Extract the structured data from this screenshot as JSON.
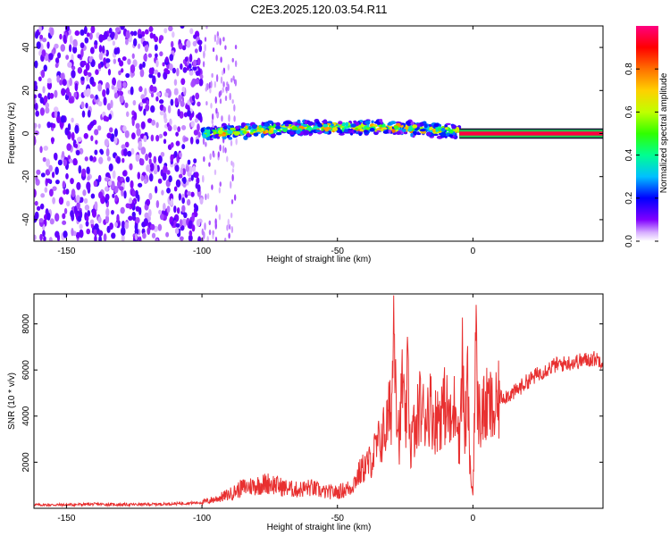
{
  "title": "C2E3.2025.120.03.54.R11",
  "chart_data": [
    {
      "type": "heatmap",
      "panel": "top",
      "xlabel": "Height of straight line (km)",
      "ylabel": "Frequency (Hz)",
      "xlim": [
        -162,
        48
      ],
      "ylim": [
        -50,
        50
      ],
      "x_ticks": [
        -150,
        -100,
        -50,
        0
      ],
      "y_ticks": [
        -40,
        -20,
        0,
        20,
        40
      ],
      "colorbar": {
        "label": "Normalized spectral amplitude",
        "range": [
          0,
          1
        ],
        "ticks": [
          0.0,
          0.2,
          0.4,
          0.6,
          0.8
        ],
        "colormap": [
          "#ffffff",
          "#c080ff",
          "#6000ff",
          "#0000ff",
          "#00c0ff",
          "#00ff80",
          "#40ff00",
          "#ffff00",
          "#ff8000",
          "#ff0000",
          "#ff00a0"
        ]
      },
      "regions": [
        {
          "x": [
            -162,
            -100
          ],
          "freq": [
            -50,
            50
          ],
          "amplitude": 0.1,
          "pattern": "broadband noise"
        },
        {
          "x": [
            -100,
            -87
          ],
          "freq": [
            -50,
            50
          ],
          "amplitude": 0.05,
          "pattern": "sparse noise"
        },
        {
          "x": [
            -100,
            -5
          ],
          "freq_center": [
            0,
            3
          ],
          "freq_width": 6,
          "amplitude": 0.4,
          "pattern": "signal band"
        },
        {
          "x": [
            -5,
            48
          ],
          "freq_center": 0,
          "freq_width": 2,
          "amplitude": 0.95,
          "pattern": "narrow carrier"
        }
      ]
    },
    {
      "type": "line",
      "panel": "bottom",
      "xlabel": "Height of straight line (km)",
      "ylabel": "SNR (10 * v/v)",
      "xlim": [
        -162,
        48
      ],
      "ylim": [
        0,
        9300
      ],
      "x_ticks": [
        -150,
        -100,
        -50,
        0
      ],
      "y_ticks": [
        2000,
        4000,
        6000,
        8000
      ],
      "color": "#e83030",
      "series": [
        {
          "x": [
            -162,
            -150,
            -140,
            -130,
            -120,
            -110,
            -100,
            -95,
            -90,
            -85,
            -80,
            -75,
            -70,
            -65,
            -60,
            -55,
            -50,
            -45,
            -42,
            -40,
            -38,
            -36,
            -34,
            -32,
            -30,
            -29,
            -28,
            -27,
            -26,
            -25,
            -24,
            -23,
            -22,
            -21,
            -20,
            -18,
            -16,
            -14,
            -12,
            -10,
            -8,
            -6,
            -5,
            -4,
            -3,
            -2,
            -1,
            0,
            1,
            2,
            4,
            6,
            8,
            10,
            15,
            20,
            25,
            30,
            35,
            40,
            45,
            48
          ],
          "y": [
            150,
            150,
            180,
            160,
            170,
            200,
            250,
            400,
            600,
            900,
            1000,
            1100,
            900,
            800,
            900,
            700,
            700,
            900,
            1500,
            1800,
            2000,
            2500,
            3000,
            3500,
            4500,
            9300,
            4000,
            3000,
            6000,
            3000,
            5800,
            2500,
            3500,
            3000,
            4500,
            4000,
            4500,
            3800,
            4200,
            4500,
            3500,
            5000,
            2500,
            7000,
            3000,
            5500,
            1500,
            600,
            7300,
            4000,
            4200,
            4500,
            4000,
            4800,
            5000,
            5500,
            5900,
            6200,
            6300,
            6400,
            6500,
            6400
          ]
        }
      ]
    }
  ]
}
